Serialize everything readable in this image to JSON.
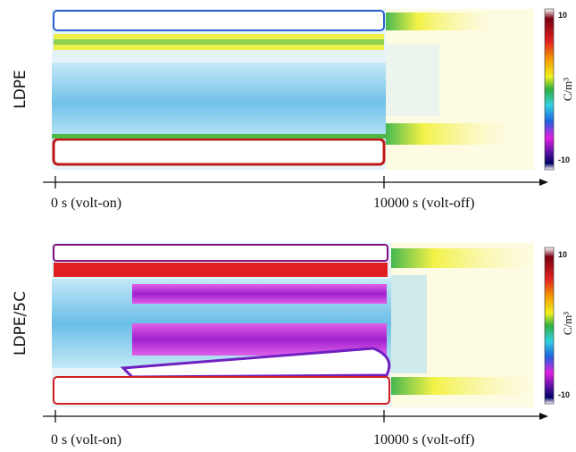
{
  "panels": [
    {
      "label": "LDPE",
      "start_label": "0 s (volt-on)",
      "end_label": "10000 s (volt-off)"
    },
    {
      "label": "LDPE/5C",
      "start_label": "0 s (volt-on)",
      "end_label": "10000 s (volt-off)"
    }
  ],
  "colorbar": {
    "max": 10,
    "min": -10,
    "unit": "C/m³"
  }
}
